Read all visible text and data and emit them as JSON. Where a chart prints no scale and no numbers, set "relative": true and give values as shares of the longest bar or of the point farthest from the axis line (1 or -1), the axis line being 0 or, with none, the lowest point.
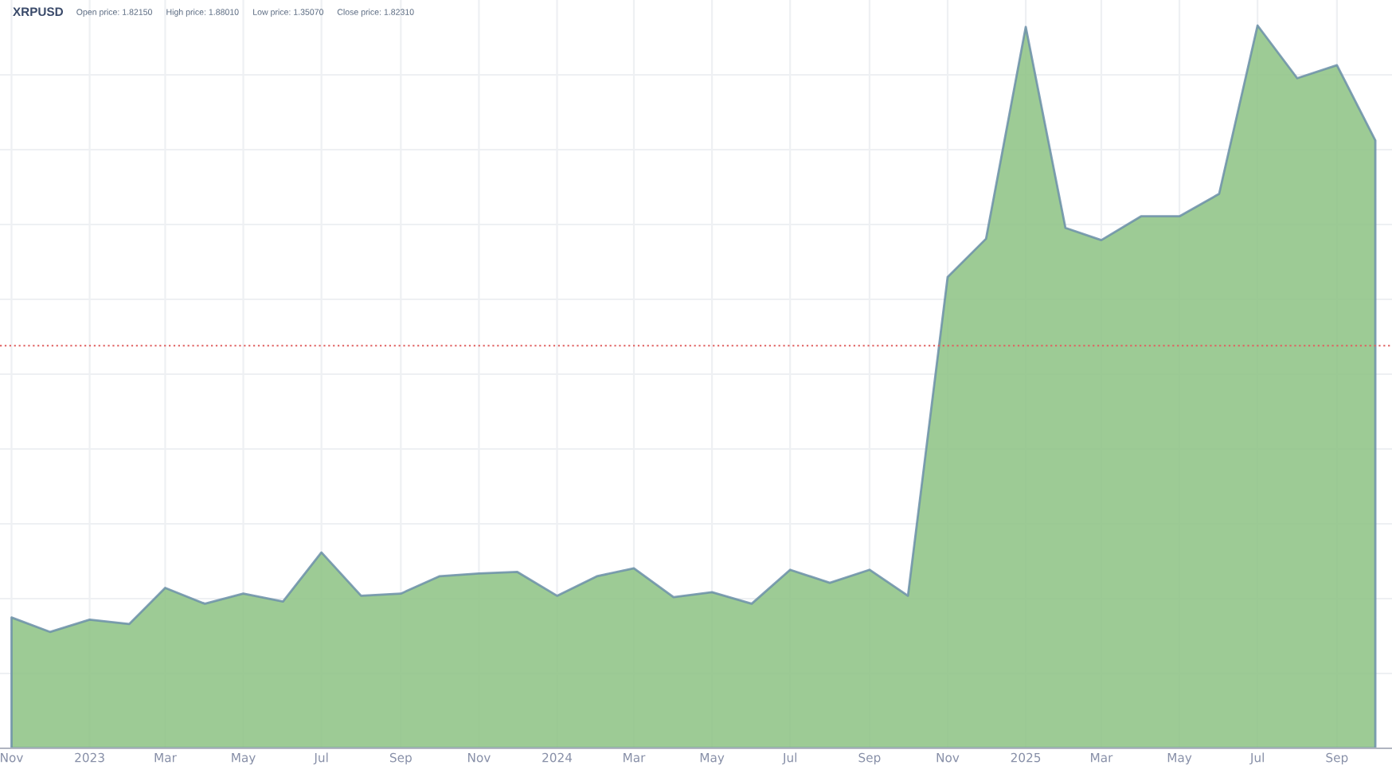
{
  "chart_data": {
    "type": "area",
    "title": "XRPUSD",
    "annotations": [
      "Open price: 1.82150",
      "High price: 1.88010",
      "Low price: 1.35070",
      "Close price: 1.82310"
    ],
    "x": [
      "2022-11",
      "2022-12",
      "2023-01",
      "2023-02",
      "2023-03",
      "2023-04",
      "2023-05",
      "2023-06",
      "2023-07",
      "2023-08",
      "2023-09",
      "2023-10",
      "2023-11",
      "2023-12",
      "2024-01",
      "2024-02",
      "2024-03",
      "2024-04",
      "2024-05",
      "2024-06",
      "2024-07",
      "2024-08",
      "2024-09",
      "2024-10",
      "2024-11",
      "2024-12",
      "2025-01",
      "2025-02",
      "2025-03",
      "2025-04",
      "2025-05",
      "2025-06",
      "2025-07",
      "2025-08",
      "2025-09",
      "2025-10"
    ],
    "series": [
      {
        "color": "#8cc283",
        "values": [
          0.181,
          0.161,
          0.178,
          0.172,
          0.222,
          0.2,
          0.214,
          0.203,
          0.271,
          0.211,
          0.214,
          0.238,
          0.242,
          0.244,
          0.211,
          0.238,
          0.249,
          0.209,
          0.216,
          0.2,
          0.247,
          0.229,
          0.247,
          0.211,
          0.652,
          0.705,
          0.998,
          0.72,
          0.703,
          0.736,
          0.736,
          0.767,
          1,
          0.927,
          0.945,
          0.841
        ]
      }
    ],
    "relative": true,
    "xlim": [
      "2022-10-23",
      "2025-10-14"
    ],
    "xticks": [
      {
        "value": "2022-11-01",
        "label": "Nov"
      },
      {
        "value": "2023-01-01",
        "label": "2023"
      },
      {
        "value": "2023-03-01",
        "label": "Mar"
      },
      {
        "value": "2023-05-01",
        "label": "May"
      },
      {
        "value": "2023-07-01",
        "label": "Jul"
      },
      {
        "value": "2023-09-01",
        "label": "Sep"
      },
      {
        "value": "2023-11-01",
        "label": "Nov"
      },
      {
        "value": "2024-01-01",
        "label": "2024"
      },
      {
        "value": "2024-03-01",
        "label": "Mar"
      },
      {
        "value": "2024-05-01",
        "label": "May"
      },
      {
        "value": "2024-07-01",
        "label": "Jul"
      },
      {
        "value": "2024-09-01",
        "label": "Sep"
      },
      {
        "value": "2024-11-01",
        "label": "Nov"
      },
      {
        "value": "2025-01-01",
        "label": "2025"
      },
      {
        "value": "2025-03-01",
        "label": "Mar"
      },
      {
        "value": "2025-05-01",
        "label": "May"
      },
      {
        "value": "2025-07-01",
        "label": "Jul"
      },
      {
        "value": "2025-09-01",
        "label": "Sep"
      }
    ],
    "ref_lines": [
      {
        "axis": "y",
        "value": 0.557,
        "color": "#e06060",
        "line_style": "dotted"
      }
    ],
    "grid": true,
    "line_style": "solid",
    "marker": "none"
  }
}
